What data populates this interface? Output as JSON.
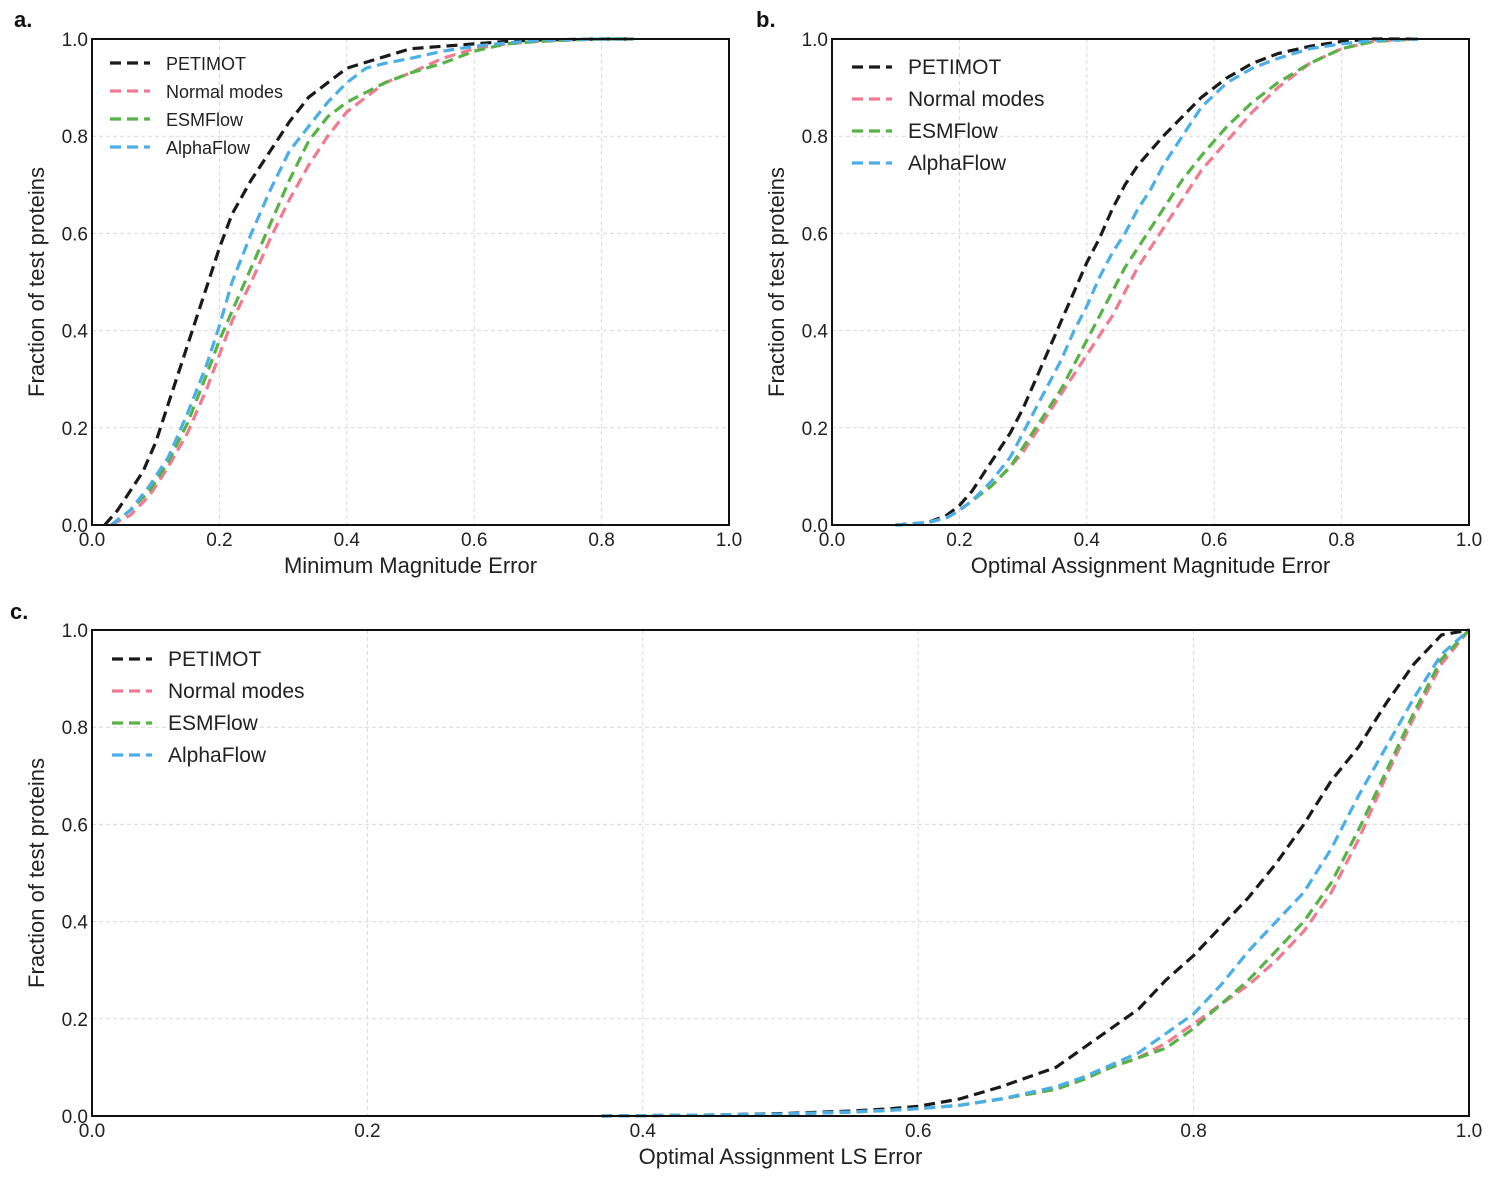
{
  "chart_data": [
    {
      "id": "a",
      "panel_label": "a.",
      "type": "line",
      "subtype": "cumulative distribution",
      "xlabel": "Minimum Magnitude Error",
      "ylabel": "Fraction of test proteins",
      "xlim": [
        0.0,
        1.0
      ],
      "ylim": [
        0.0,
        1.0
      ],
      "xticks": [
        "0.0",
        "0.2",
        "0.4",
        "0.6",
        "0.8",
        "1.0"
      ],
      "yticks": [
        "0.0",
        "0.2",
        "0.4",
        "0.6",
        "0.8",
        "1.0"
      ],
      "grid": true,
      "legend_position": "top-left",
      "series": [
        {
          "name": "PETIMOT",
          "color": "#1a1a1a",
          "x": [
            0.02,
            0.04,
            0.06,
            0.08,
            0.1,
            0.12,
            0.14,
            0.16,
            0.18,
            0.2,
            0.22,
            0.25,
            0.28,
            0.31,
            0.34,
            0.37,
            0.4,
            0.45,
            0.5,
            0.55,
            0.6,
            0.65,
            0.7,
            0.75,
            0.8,
            0.85
          ],
          "y": [
            0.0,
            0.03,
            0.07,
            0.11,
            0.17,
            0.25,
            0.33,
            0.41,
            0.49,
            0.57,
            0.64,
            0.71,
            0.77,
            0.83,
            0.88,
            0.91,
            0.94,
            0.96,
            0.98,
            0.985,
            0.99,
            0.995,
            0.998,
            0.999,
            1.0,
            1.0
          ]
        },
        {
          "name": "Normal modes",
          "color": "#f07a90",
          "x": [
            0.03,
            0.06,
            0.09,
            0.12,
            0.15,
            0.18,
            0.2,
            0.22,
            0.25,
            0.28,
            0.31,
            0.34,
            0.37,
            0.4,
            0.43,
            0.46,
            0.5,
            0.55,
            0.6,
            0.65,
            0.7,
            0.75,
            0.8,
            0.85
          ],
          "y": [
            0.0,
            0.02,
            0.06,
            0.12,
            0.19,
            0.28,
            0.35,
            0.42,
            0.5,
            0.59,
            0.67,
            0.74,
            0.8,
            0.85,
            0.88,
            0.91,
            0.93,
            0.96,
            0.98,
            0.99,
            0.995,
            0.998,
            1.0,
            1.0
          ]
        },
        {
          "name": "ESMFlow",
          "color": "#57b346",
          "x": [
            0.03,
            0.06,
            0.09,
            0.12,
            0.15,
            0.18,
            0.2,
            0.22,
            0.25,
            0.28,
            0.31,
            0.34,
            0.37,
            0.4,
            0.43,
            0.46,
            0.5,
            0.55,
            0.6,
            0.65,
            0.7,
            0.75,
            0.8,
            0.85
          ],
          "y": [
            0.0,
            0.03,
            0.07,
            0.13,
            0.21,
            0.31,
            0.38,
            0.44,
            0.53,
            0.62,
            0.71,
            0.79,
            0.84,
            0.87,
            0.89,
            0.91,
            0.93,
            0.95,
            0.975,
            0.99,
            0.995,
            0.998,
            1.0,
            1.0
          ]
        },
        {
          "name": "AlphaFlow",
          "color": "#4aaee8",
          "x": [
            0.03,
            0.06,
            0.09,
            0.12,
            0.15,
            0.18,
            0.2,
            0.22,
            0.25,
            0.28,
            0.31,
            0.34,
            0.37,
            0.4,
            0.43,
            0.46,
            0.5,
            0.55,
            0.6,
            0.65,
            0.7,
            0.75,
            0.8,
            0.85
          ],
          "y": [
            0.0,
            0.03,
            0.08,
            0.14,
            0.23,
            0.33,
            0.41,
            0.5,
            0.6,
            0.69,
            0.77,
            0.82,
            0.87,
            0.91,
            0.94,
            0.95,
            0.96,
            0.975,
            0.985,
            0.992,
            0.997,
            0.999,
            1.0,
            1.0
          ]
        }
      ]
    },
    {
      "id": "b",
      "panel_label": "b.",
      "type": "line",
      "subtype": "cumulative distribution",
      "xlabel": "Optimal Assignment Magnitude Error",
      "ylabel": "Fraction of test proteins",
      "xlim": [
        0.0,
        1.0
      ],
      "ylim": [
        0.0,
        1.0
      ],
      "xticks": [
        "0.0",
        "0.2",
        "0.4",
        "0.6",
        "0.8",
        "1.0"
      ],
      "yticks": [
        "0.0",
        "0.2",
        "0.4",
        "0.6",
        "0.8",
        "1.0"
      ],
      "grid": true,
      "legend_position": "top-left",
      "series": [
        {
          "name": "PETIMOT",
          "color": "#1a1a1a",
          "x": [
            0.1,
            0.15,
            0.18,
            0.2,
            0.22,
            0.25,
            0.28,
            0.3,
            0.32,
            0.34,
            0.36,
            0.38,
            0.4,
            0.42,
            0.44,
            0.46,
            0.48,
            0.5,
            0.52,
            0.55,
            0.58,
            0.62,
            0.66,
            0.7,
            0.75,
            0.8,
            0.85,
            0.92
          ],
          "y": [
            0.0,
            0.005,
            0.02,
            0.04,
            0.07,
            0.13,
            0.19,
            0.24,
            0.3,
            0.36,
            0.42,
            0.48,
            0.54,
            0.59,
            0.65,
            0.7,
            0.74,
            0.77,
            0.8,
            0.84,
            0.88,
            0.92,
            0.95,
            0.97,
            0.985,
            0.995,
            1.0,
            1.0
          ]
        },
        {
          "name": "Normal modes",
          "color": "#f07a90",
          "x": [
            0.1,
            0.15,
            0.18,
            0.2,
            0.22,
            0.25,
            0.28,
            0.3,
            0.32,
            0.34,
            0.36,
            0.38,
            0.4,
            0.42,
            0.44,
            0.46,
            0.48,
            0.5,
            0.52,
            0.55,
            0.58,
            0.62,
            0.66,
            0.7,
            0.75,
            0.8,
            0.85,
            0.92
          ],
          "y": [
            0.0,
            0.005,
            0.015,
            0.03,
            0.05,
            0.08,
            0.12,
            0.15,
            0.19,
            0.23,
            0.27,
            0.31,
            0.35,
            0.39,
            0.43,
            0.48,
            0.53,
            0.57,
            0.61,
            0.67,
            0.73,
            0.79,
            0.85,
            0.9,
            0.95,
            0.98,
            0.995,
            1.0
          ]
        },
        {
          "name": "ESMFlow",
          "color": "#57b346",
          "x": [
            0.1,
            0.15,
            0.18,
            0.2,
            0.22,
            0.25,
            0.28,
            0.3,
            0.32,
            0.34,
            0.36,
            0.38,
            0.4,
            0.42,
            0.44,
            0.46,
            0.48,
            0.5,
            0.52,
            0.55,
            0.58,
            0.62,
            0.66,
            0.7,
            0.75,
            0.8,
            0.85,
            0.92
          ],
          "y": [
            0.0,
            0.005,
            0.015,
            0.03,
            0.05,
            0.08,
            0.12,
            0.16,
            0.2,
            0.24,
            0.28,
            0.33,
            0.38,
            0.43,
            0.48,
            0.53,
            0.57,
            0.61,
            0.65,
            0.71,
            0.76,
            0.82,
            0.87,
            0.91,
            0.95,
            0.98,
            0.995,
            1.0
          ]
        },
        {
          "name": "AlphaFlow",
          "color": "#4aaee8",
          "x": [
            0.1,
            0.15,
            0.18,
            0.2,
            0.22,
            0.25,
            0.28,
            0.3,
            0.32,
            0.34,
            0.36,
            0.38,
            0.4,
            0.42,
            0.44,
            0.46,
            0.48,
            0.5,
            0.52,
            0.55,
            0.58,
            0.62,
            0.66,
            0.7,
            0.75,
            0.8,
            0.85,
            0.92
          ],
          "y": [
            0.0,
            0.005,
            0.015,
            0.03,
            0.05,
            0.09,
            0.14,
            0.19,
            0.24,
            0.29,
            0.34,
            0.4,
            0.45,
            0.51,
            0.56,
            0.6,
            0.65,
            0.69,
            0.74,
            0.8,
            0.86,
            0.91,
            0.94,
            0.96,
            0.98,
            0.99,
            0.997,
            1.0
          ]
        }
      ]
    },
    {
      "id": "c",
      "panel_label": "c.",
      "type": "line",
      "subtype": "cumulative distribution",
      "xlabel": "Optimal Assignment LS Error",
      "ylabel": "Fraction of test proteins",
      "xlim": [
        0.0,
        1.0
      ],
      "ylim": [
        0.0,
        1.0
      ],
      "xticks": [
        "0.0",
        "0.2",
        "0.4",
        "0.6",
        "0.8",
        "1.0"
      ],
      "yticks": [
        "0.0",
        "0.2",
        "0.4",
        "0.6",
        "0.8",
        "1.0"
      ],
      "grid": true,
      "legend_position": "top-left",
      "series": [
        {
          "name": "PETIMOT",
          "color": "#1a1a1a",
          "x": [
            0.37,
            0.45,
            0.5,
            0.55,
            0.58,
            0.6,
            0.63,
            0.66,
            0.7,
            0.72,
            0.74,
            0.76,
            0.78,
            0.8,
            0.82,
            0.84,
            0.86,
            0.88,
            0.9,
            0.92,
            0.94,
            0.96,
            0.98,
            1.0
          ],
          "y": [
            0.0,
            0.002,
            0.005,
            0.01,
            0.015,
            0.02,
            0.035,
            0.06,
            0.1,
            0.14,
            0.18,
            0.22,
            0.28,
            0.33,
            0.39,
            0.45,
            0.52,
            0.6,
            0.69,
            0.76,
            0.85,
            0.93,
            0.99,
            1.0
          ]
        },
        {
          "name": "Normal modes",
          "color": "#f07a90",
          "x": [
            0.37,
            0.45,
            0.5,
            0.55,
            0.58,
            0.6,
            0.63,
            0.66,
            0.7,
            0.72,
            0.74,
            0.76,
            0.78,
            0.8,
            0.82,
            0.84,
            0.86,
            0.88,
            0.9,
            0.92,
            0.94,
            0.96,
            0.98,
            1.0
          ],
          "y": [
            0.0,
            0.002,
            0.004,
            0.008,
            0.012,
            0.015,
            0.022,
            0.035,
            0.055,
            0.075,
            0.1,
            0.12,
            0.15,
            0.19,
            0.23,
            0.27,
            0.32,
            0.38,
            0.46,
            0.57,
            0.7,
            0.82,
            0.93,
            1.0
          ]
        },
        {
          "name": "ESMFlow",
          "color": "#57b346",
          "x": [
            0.37,
            0.45,
            0.5,
            0.55,
            0.58,
            0.6,
            0.63,
            0.66,
            0.7,
            0.72,
            0.74,
            0.76,
            0.78,
            0.8,
            0.82,
            0.84,
            0.86,
            0.88,
            0.9,
            0.92,
            0.94,
            0.96,
            0.98,
            1.0
          ],
          "y": [
            0.0,
            0.002,
            0.004,
            0.008,
            0.012,
            0.015,
            0.022,
            0.035,
            0.055,
            0.075,
            0.1,
            0.12,
            0.14,
            0.18,
            0.23,
            0.28,
            0.34,
            0.4,
            0.48,
            0.59,
            0.71,
            0.83,
            0.94,
            1.0
          ]
        },
        {
          "name": "AlphaFlow",
          "color": "#4aaee8",
          "x": [
            0.37,
            0.45,
            0.5,
            0.55,
            0.58,
            0.6,
            0.63,
            0.66,
            0.7,
            0.72,
            0.74,
            0.76,
            0.78,
            0.8,
            0.82,
            0.84,
            0.86,
            0.88,
            0.9,
            0.92,
            0.94,
            0.96,
            0.98,
            1.0
          ],
          "y": [
            0.0,
            0.002,
            0.004,
            0.008,
            0.012,
            0.015,
            0.022,
            0.035,
            0.06,
            0.08,
            0.105,
            0.13,
            0.17,
            0.21,
            0.27,
            0.34,
            0.4,
            0.46,
            0.55,
            0.66,
            0.76,
            0.86,
            0.95,
            1.0
          ]
        }
      ]
    }
  ]
}
